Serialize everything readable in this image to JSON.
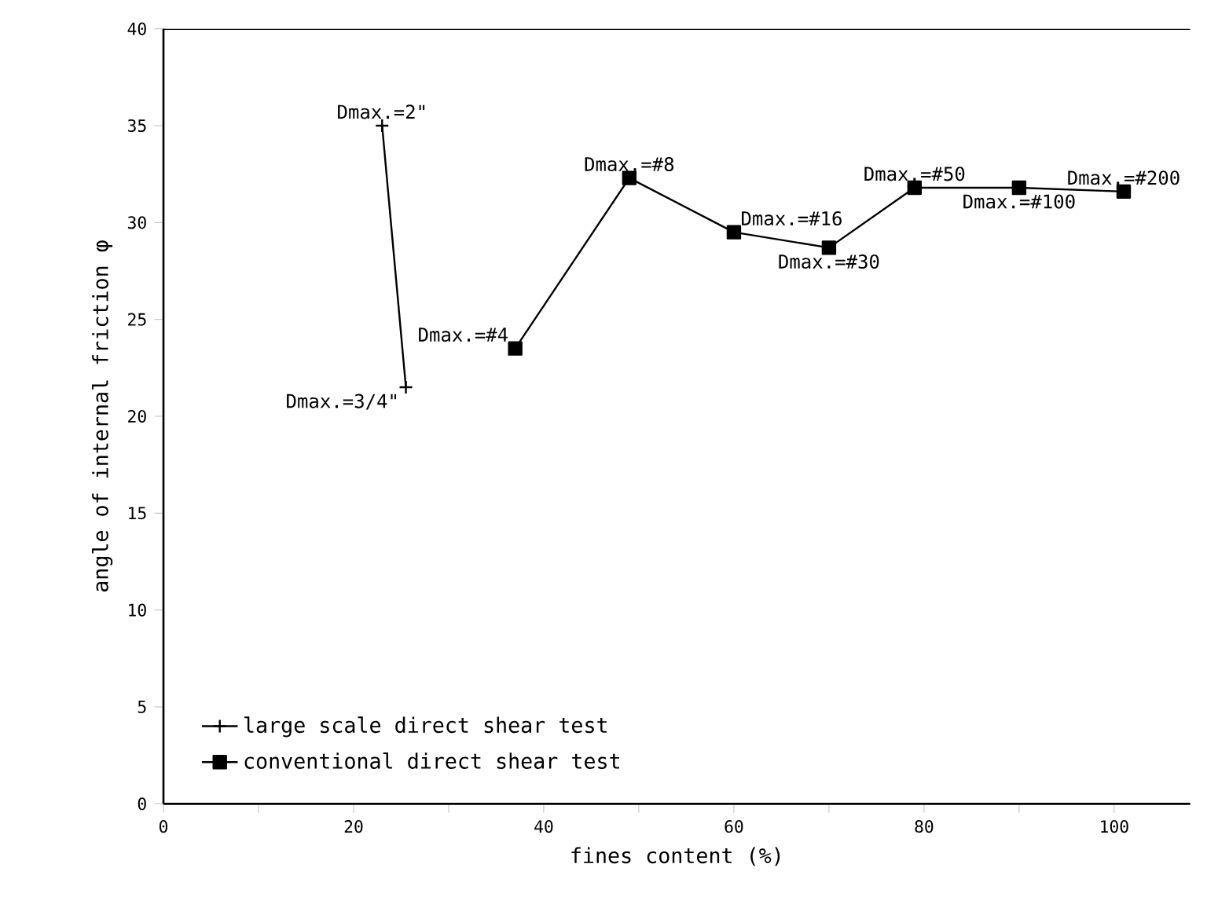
{
  "chart_data": {
    "type": "line",
    "xlabel": "fines content (%)",
    "ylabel": "angle of internal friction  φ",
    "xlim": [
      0,
      108
    ],
    "ylim": [
      0,
      40
    ],
    "xticks": [
      0,
      {
        "value": 10,
        "label": null
      },
      20,
      {
        "value": 30,
        "label": null
      },
      40,
      {
        "value": 50,
        "label": null
      },
      60,
      {
        "value": 70,
        "label": null
      },
      80,
      {
        "value": 90,
        "label": null
      },
      100
    ],
    "yticks": [
      0,
      5,
      10,
      15,
      20,
      25,
      30,
      35,
      40
    ],
    "legend": "bottom left",
    "grid": false,
    "line_style": "solid",
    "series": [
      {
        "name": "large scale direct shear test",
        "color": "#000000",
        "marker": "cross",
        "x": [
          23,
          25.5
        ],
        "values": [
          35,
          21.5
        ]
      },
      {
        "name": "conventional direct shear test",
        "color": "#000000",
        "marker": "square",
        "x": [
          37,
          49,
          60,
          70,
          79,
          90,
          101
        ],
        "values": [
          23.5,
          32.3,
          29.5,
          28.7,
          31.8,
          31.8,
          31.6
        ]
      }
    ],
    "annotations": [
      {
        "text": "Dmax.=2\"",
        "x": 23,
        "y": 35
      },
      {
        "text": "Dmax.=3/4\"",
        "x": 25.5,
        "y": 21.5
      },
      {
        "text": "Dmax.=#4",
        "x": 37,
        "y": 23.5
      },
      {
        "text": "Dmax.=#8",
        "x": 49,
        "y": 32.3
      },
      {
        "text": "Dmax.=#16",
        "x": 60,
        "y": 29.5
      },
      {
        "text": "Dmax.=#30",
        "x": 70,
        "y": 28.7
      },
      {
        "text": "Dmax.=#50",
        "x": 79,
        "y": 31.8
      },
      {
        "text": "Dmax.=#100",
        "x": 90,
        "y": 31.8
      },
      {
        "text": "Dmax.=#200",
        "x": 101,
        "y": 31.6
      }
    ]
  }
}
